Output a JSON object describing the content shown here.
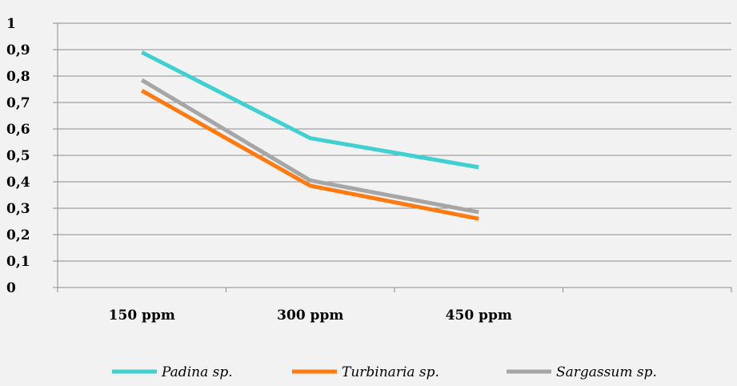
{
  "chart_data": {
    "type": "line",
    "categories": [
      "150 ppm",
      "300 ppm",
      "450 ppm"
    ],
    "y_ticks": [
      "0",
      "0,1",
      "0,2",
      "0,3",
      "0,4",
      "0,5",
      "0,6",
      "0,7",
      "0,8",
      "0,9",
      "1"
    ],
    "ylim": [
      0,
      1
    ],
    "x_slots": 4,
    "grid": true,
    "legend_position": "bottom",
    "series": [
      {
        "name": "Padina sp.",
        "color": "#40d0d2",
        "values": [
          0.89,
          0.565,
          0.455
        ]
      },
      {
        "name": "Turbinaria sp.",
        "color": "#ff7a10",
        "values": [
          0.745,
          0.385,
          0.26
        ]
      },
      {
        "name": "Sargassum sp.",
        "color": "#a6a6a6",
        "values": [
          0.785,
          0.405,
          0.285
        ]
      }
    ]
  }
}
